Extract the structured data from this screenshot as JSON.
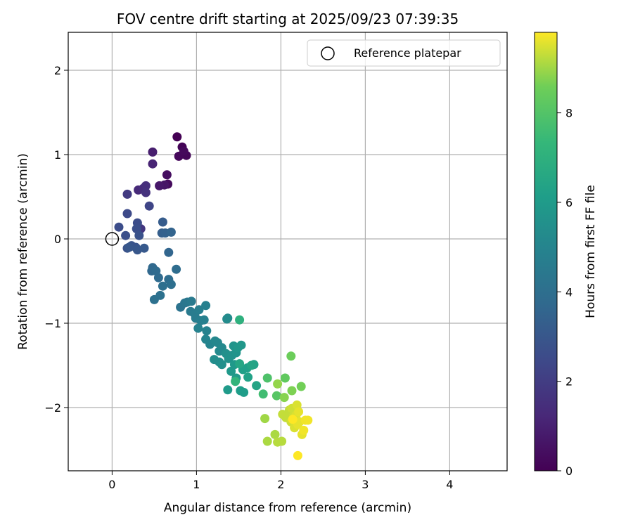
{
  "chart_data": {
    "type": "scatter",
    "title": "FOV centre drift starting at 2025/09/23 07:39:35",
    "xlabel": "Angular distance from reference (arcmin)",
    "ylabel": "Rotation from reference (arcmin)",
    "xlim": [
      -0.52,
      4.68
    ],
    "ylim": [
      -2.75,
      2.45
    ],
    "xticks": [
      0,
      1,
      2,
      3,
      4
    ],
    "yticks": [
      -2,
      -1,
      0,
      1,
      2
    ],
    "grid": true,
    "colorbar": {
      "label": "Hours from first FF file",
      "range": [
        0,
        9.8
      ],
      "ticks": [
        0,
        2,
        4,
        6,
        8
      ],
      "colormap": "viridis"
    },
    "reference": {
      "x": 0,
      "y": 0,
      "label": "Reference platepar"
    },
    "legend_position": "top-right",
    "points": [
      {
        "x": 0.77,
        "y": 1.21,
        "c": 0.0
      },
      {
        "x": 0.83,
        "y": 1.09,
        "c": 0.1
      },
      {
        "x": 0.88,
        "y": 0.99,
        "c": 0.15
      },
      {
        "x": 0.79,
        "y": 0.98,
        "c": 0.2
      },
      {
        "x": 0.85,
        "y": 1.04,
        "c": 0.25
      },
      {
        "x": 0.66,
        "y": 0.65,
        "c": 0.3
      },
      {
        "x": 0.65,
        "y": 0.76,
        "c": 0.4
      },
      {
        "x": 0.62,
        "y": 0.64,
        "c": 0.6
      },
      {
        "x": 0.56,
        "y": 0.63,
        "c": 0.7
      },
      {
        "x": 0.48,
        "y": 1.03,
        "c": 0.9
      },
      {
        "x": 0.48,
        "y": 0.89,
        "c": 1.1
      },
      {
        "x": 0.31,
        "y": 0.58,
        "c": 1.3
      },
      {
        "x": 0.37,
        "y": 0.6,
        "c": 1.4
      },
      {
        "x": 0.4,
        "y": 0.63,
        "c": 1.5
      },
      {
        "x": 0.4,
        "y": 0.55,
        "c": 1.6
      },
      {
        "x": 0.34,
        "y": 0.12,
        "c": 1.8
      },
      {
        "x": 0.18,
        "y": 0.53,
        "c": 1.9
      },
      {
        "x": 0.44,
        "y": 0.39,
        "c": 2.3
      },
      {
        "x": 0.18,
        "y": 0.3,
        "c": 2.5
      },
      {
        "x": 0.08,
        "y": 0.14,
        "c": 2.6
      },
      {
        "x": 0.3,
        "y": 0.19,
        "c": 2.6
      },
      {
        "x": 0.29,
        "y": 0.12,
        "c": 2.7
      },
      {
        "x": 0.16,
        "y": 0.04,
        "c": 2.7
      },
      {
        "x": 0.32,
        "y": 0.04,
        "c": 2.8
      },
      {
        "x": 0.18,
        "y": -0.11,
        "c": 2.8
      },
      {
        "x": 0.23,
        "y": -0.08,
        "c": 2.9
      },
      {
        "x": 0.28,
        "y": -0.1,
        "c": 2.9
      },
      {
        "x": 0.3,
        "y": -0.13,
        "c": 3.0
      },
      {
        "x": 0.2,
        "y": -0.1,
        "c": 3.0
      },
      {
        "x": 0.38,
        "y": -0.11,
        "c": 3.1
      },
      {
        "x": 0.6,
        "y": 0.2,
        "c": 3.2
      },
      {
        "x": 0.59,
        "y": 0.07,
        "c": 3.3
      },
      {
        "x": 0.63,
        "y": 0.07,
        "c": 3.4
      },
      {
        "x": 0.7,
        "y": 0.08,
        "c": 3.5
      },
      {
        "x": 0.67,
        "y": -0.16,
        "c": 3.6
      },
      {
        "x": 0.48,
        "y": -0.34,
        "c": 3.7
      },
      {
        "x": 0.47,
        "y": -0.38,
        "c": 3.7
      },
      {
        "x": 0.52,
        "y": -0.38,
        "c": 3.8
      },
      {
        "x": 0.55,
        "y": -0.46,
        "c": 3.8
      },
      {
        "x": 0.76,
        "y": -0.36,
        "c": 3.9
      },
      {
        "x": 0.67,
        "y": -0.48,
        "c": 3.9
      },
      {
        "x": 0.6,
        "y": -0.56,
        "c": 4.0
      },
      {
        "x": 0.7,
        "y": -0.54,
        "c": 4.0
      },
      {
        "x": 0.57,
        "y": -0.67,
        "c": 4.1
      },
      {
        "x": 0.5,
        "y": -0.72,
        "c": 4.1
      },
      {
        "x": 0.81,
        "y": -0.81,
        "c": 4.2
      },
      {
        "x": 0.86,
        "y": -0.76,
        "c": 4.3
      },
      {
        "x": 0.89,
        "y": -0.75,
        "c": 4.4
      },
      {
        "x": 0.94,
        "y": -0.74,
        "c": 4.5
      },
      {
        "x": 0.93,
        "y": -0.86,
        "c": 4.5
      },
      {
        "x": 0.98,
        "y": -0.89,
        "c": 4.6
      },
      {
        "x": 0.99,
        "y": -0.94,
        "c": 4.6
      },
      {
        "x": 1.03,
        "y": -0.84,
        "c": 4.7
      },
      {
        "x": 1.05,
        "y": -0.97,
        "c": 4.7
      },
      {
        "x": 1.11,
        "y": -0.79,
        "c": 4.8
      },
      {
        "x": 1.09,
        "y": -0.96,
        "c": 4.8
      },
      {
        "x": 1.02,
        "y": -1.06,
        "c": 4.9
      },
      {
        "x": 1.12,
        "y": -1.09,
        "c": 4.9
      },
      {
        "x": 1.11,
        "y": -1.19,
        "c": 5.0
      },
      {
        "x": 1.16,
        "y": -1.25,
        "c": 5.0
      },
      {
        "x": 1.22,
        "y": -1.21,
        "c": 5.1
      },
      {
        "x": 1.25,
        "y": -1.23,
        "c": 5.1
      },
      {
        "x": 1.27,
        "y": -1.33,
        "c": 5.2
      },
      {
        "x": 1.3,
        "y": -1.29,
        "c": 5.2
      },
      {
        "x": 1.37,
        "y": -0.94,
        "c": 5.3
      },
      {
        "x": 1.36,
        "y": -0.95,
        "c": 5.3
      },
      {
        "x": 1.21,
        "y": -1.43,
        "c": 5.4
      },
      {
        "x": 1.27,
        "y": -1.46,
        "c": 5.4
      },
      {
        "x": 1.3,
        "y": -1.49,
        "c": 5.5
      },
      {
        "x": 1.35,
        "y": -1.36,
        "c": 5.5
      },
      {
        "x": 1.38,
        "y": -1.42,
        "c": 5.6
      },
      {
        "x": 1.42,
        "y": -1.38,
        "c": 5.6
      },
      {
        "x": 1.44,
        "y": -1.27,
        "c": 5.7
      },
      {
        "x": 1.47,
        "y": -1.35,
        "c": 5.7
      },
      {
        "x": 1.49,
        "y": -1.29,
        "c": 5.8
      },
      {
        "x": 1.53,
        "y": -1.26,
        "c": 5.8
      },
      {
        "x": 1.45,
        "y": -1.49,
        "c": 5.9
      },
      {
        "x": 1.41,
        "y": -1.57,
        "c": 5.9
      },
      {
        "x": 1.37,
        "y": -1.79,
        "c": 6.0
      },
      {
        "x": 1.47,
        "y": -1.65,
        "c": 6.0
      },
      {
        "x": 1.52,
        "y": -1.8,
        "c": 6.1
      },
      {
        "x": 1.56,
        "y": -1.82,
        "c": 6.1
      },
      {
        "x": 1.55,
        "y": -1.55,
        "c": 6.2
      },
      {
        "x": 1.6,
        "y": -1.53,
        "c": 6.2
      },
      {
        "x": 1.61,
        "y": -1.64,
        "c": 6.3
      },
      {
        "x": 1.68,
        "y": -1.49,
        "c": 6.3
      },
      {
        "x": 1.71,
        "y": -1.74,
        "c": 6.4
      },
      {
        "x": 1.65,
        "y": -1.5,
        "c": 6.4
      },
      {
        "x": 1.51,
        "y": -1.48,
        "c": 6.5
      },
      {
        "x": 1.51,
        "y": -0.96,
        "c": 7.0
      },
      {
        "x": 1.46,
        "y": -1.69,
        "c": 7.2
      },
      {
        "x": 1.79,
        "y": -1.84,
        "c": 7.6
      },
      {
        "x": 1.84,
        "y": -1.65,
        "c": 7.9
      },
      {
        "x": 1.95,
        "y": -1.86,
        "c": 8.1
      },
      {
        "x": 2.05,
        "y": -1.65,
        "c": 8.3
      },
      {
        "x": 2.12,
        "y": -1.39,
        "c": 8.5
      },
      {
        "x": 2.24,
        "y": -1.75,
        "c": 8.6
      },
      {
        "x": 2.13,
        "y": -1.8,
        "c": 8.7
      },
      {
        "x": 2.04,
        "y": -1.88,
        "c": 8.8
      },
      {
        "x": 1.96,
        "y": -1.72,
        "c": 8.9
      },
      {
        "x": 1.81,
        "y": -2.13,
        "c": 9.0
      },
      {
        "x": 1.84,
        "y": -2.4,
        "c": 9.1
      },
      {
        "x": 1.93,
        "y": -2.32,
        "c": 9.1
      },
      {
        "x": 1.96,
        "y": -2.41,
        "c": 9.2
      },
      {
        "x": 2.01,
        "y": -2.4,
        "c": 9.2
      },
      {
        "x": 2.02,
        "y": -2.08,
        "c": 9.3
      },
      {
        "x": 2.06,
        "y": -2.12,
        "c": 9.3
      },
      {
        "x": 2.1,
        "y": -2.03,
        "c": 9.3
      },
      {
        "x": 2.12,
        "y": -2.17,
        "c": 9.4
      },
      {
        "x": 2.13,
        "y": -2.01,
        "c": 9.4
      },
      {
        "x": 2.15,
        "y": -2.1,
        "c": 9.4
      },
      {
        "x": 2.16,
        "y": -2.24,
        "c": 9.5
      },
      {
        "x": 2.18,
        "y": -2.09,
        "c": 9.5
      },
      {
        "x": 2.19,
        "y": -1.97,
        "c": 9.5
      },
      {
        "x": 2.21,
        "y": -2.05,
        "c": 9.6
      },
      {
        "x": 2.22,
        "y": -2.17,
        "c": 9.6
      },
      {
        "x": 2.2,
        "y": -2.2,
        "c": 9.6
      },
      {
        "x": 2.25,
        "y": -2.32,
        "c": 9.6
      },
      {
        "x": 2.27,
        "y": -2.27,
        "c": 9.7
      },
      {
        "x": 2.29,
        "y": -2.15,
        "c": 9.7
      },
      {
        "x": 2.32,
        "y": -2.15,
        "c": 9.7
      },
      {
        "x": 2.2,
        "y": -2.57,
        "c": 9.8
      },
      {
        "x": 2.14,
        "y": -2.14,
        "c": 9.8
      }
    ]
  }
}
